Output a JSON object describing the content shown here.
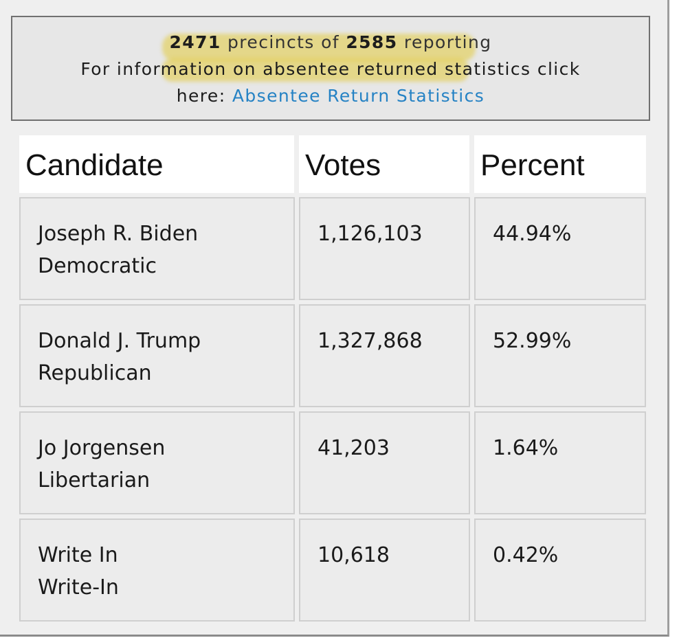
{
  "reporting": {
    "precincts_reporting": "2471",
    "precincts_word": "precincts of",
    "precincts_total": "2585",
    "reporting_word": "reporting",
    "info_text_line2": "For information on absentee returned statistics click",
    "info_text_line3_prefix": "here: ",
    "link_label": "Absentee Return Statistics"
  },
  "table": {
    "headers": [
      "Candidate",
      "Votes",
      "Percent"
    ],
    "rows": [
      {
        "name": "Joseph R. Biden",
        "party": "Democratic",
        "votes": "1,126,103",
        "percent": "44.94%"
      },
      {
        "name": "Donald J. Trump",
        "party": "Republican",
        "votes": "1,327,868",
        "percent": "52.99%"
      },
      {
        "name": "Jo Jorgensen",
        "party": "Libertarian",
        "votes": "41,203",
        "percent": "1.64%"
      },
      {
        "name": "Write In",
        "party": "Write-In",
        "votes": "10,618",
        "percent": "0.42%"
      }
    ]
  },
  "colors": {
    "link": "#2582c4",
    "highlight": "#e2ca3c",
    "cell_background": "#ececec",
    "header_background": "#ffffff"
  }
}
